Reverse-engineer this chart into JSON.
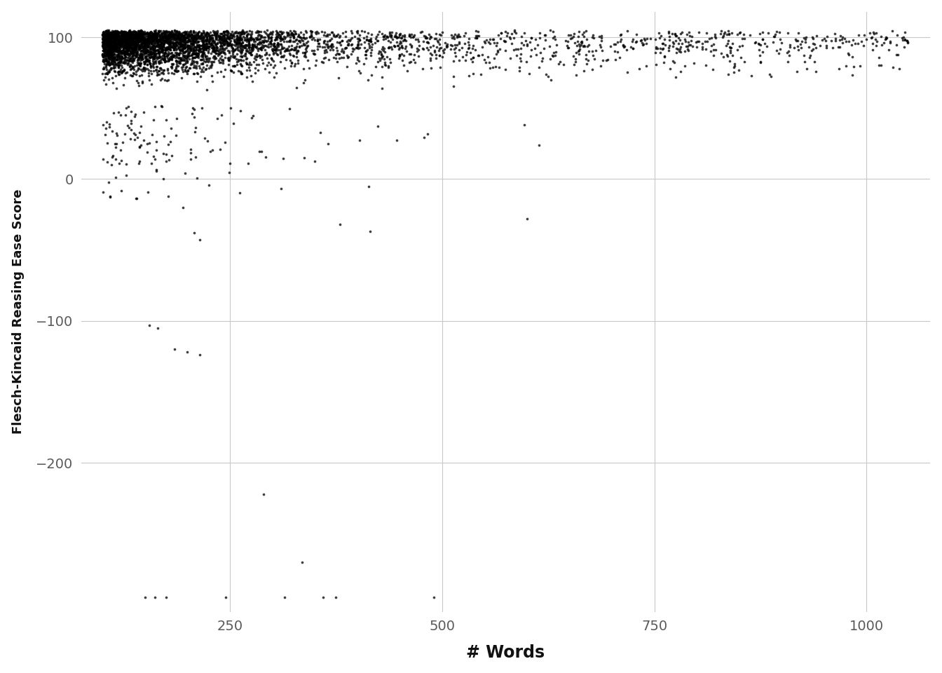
{
  "xlabel": "# Words",
  "ylabel": "Flesch-Kincaid Reasing Ease Score",
  "xlim": [
    75,
    1075
  ],
  "ylim": [
    -305,
    118
  ],
  "xticks": [
    250,
    500,
    750,
    1000
  ],
  "yticks": [
    -200,
    -100,
    0,
    100
  ],
  "dot_color": "#000000",
  "dot_size": 7,
  "dot_alpha": 0.75,
  "background_color": "#ffffff",
  "grid_color": "#c8c8c8",
  "seed": 42
}
